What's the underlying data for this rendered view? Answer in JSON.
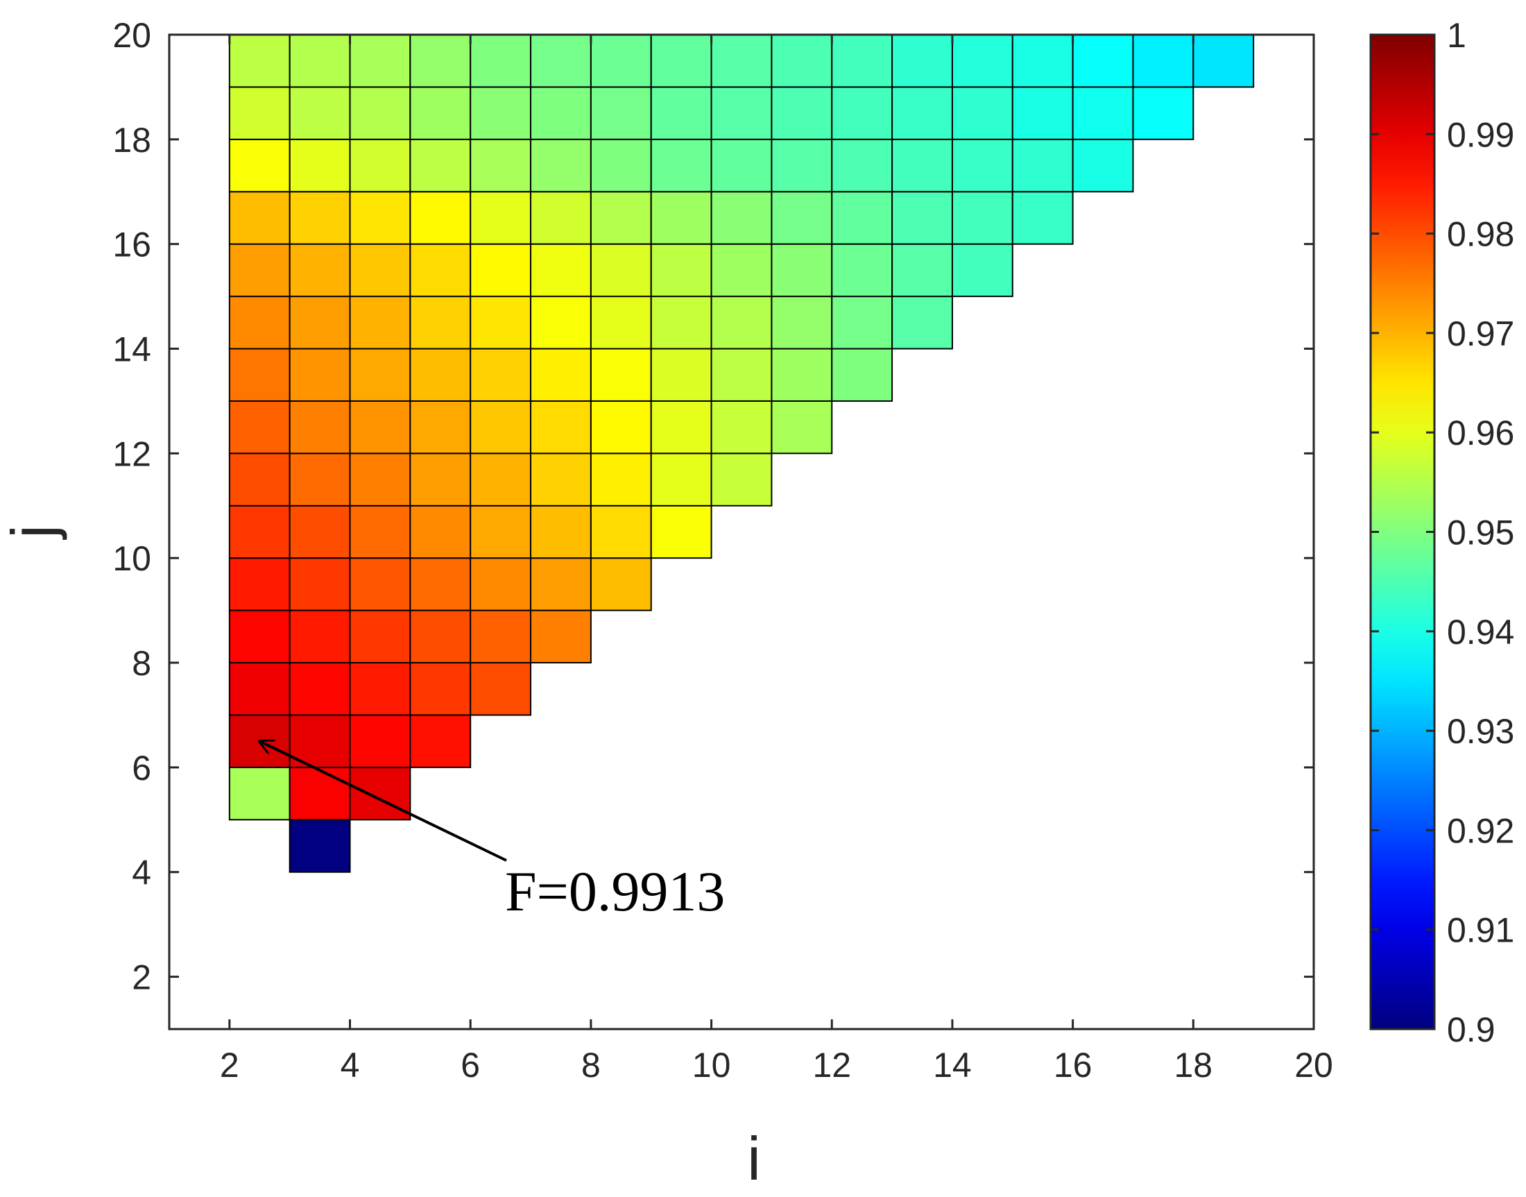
{
  "chart_data": {
    "type": "heatmap",
    "title": "",
    "xlabel": "i",
    "ylabel": "j",
    "xlim": [
      1,
      20
    ],
    "ylim": [
      1,
      20
    ],
    "xticks": [
      "2",
      "4",
      "6",
      "8",
      "10",
      "12",
      "14",
      "16",
      "18",
      "20"
    ],
    "yticks": [
      "2",
      "4",
      "6",
      "8",
      "10",
      "12",
      "14",
      "16",
      "18",
      "20"
    ],
    "colorbar": {
      "min": 0.9,
      "max": 1.0,
      "ticks": [
        "0.9",
        "0.91",
        "0.92",
        "0.93",
        "0.94",
        "0.95",
        "0.96",
        "0.97",
        "0.98",
        "0.99",
        "1"
      ],
      "colormap": "jet"
    },
    "grid": false,
    "cells": [
      {
        "i": 3,
        "j": 4,
        "v": 0.9
      },
      {
        "i": 2,
        "j": 5,
        "v": 0.954
      },
      {
        "i": 3,
        "j": 5,
        "v": 0.988
      },
      {
        "i": 4,
        "j": 5,
        "v": 0.99
      },
      {
        "i": 2,
        "j": 6,
        "v": 0.9913
      },
      {
        "i": 3,
        "j": 6,
        "v": 0.99
      },
      {
        "i": 4,
        "j": 6,
        "v": 0.987
      },
      {
        "i": 5,
        "j": 6,
        "v": 0.986
      },
      {
        "i": 2,
        "j": 7,
        "v": 0.989
      },
      {
        "i": 3,
        "j": 7,
        "v": 0.987
      },
      {
        "i": 4,
        "j": 7,
        "v": 0.985
      },
      {
        "i": 5,
        "j": 7,
        "v": 0.982
      },
      {
        "i": 6,
        "j": 7,
        "v": 0.98
      },
      {
        "i": 2,
        "j": 8,
        "v": 0.987
      },
      {
        "i": 3,
        "j": 8,
        "v": 0.985
      },
      {
        "i": 4,
        "j": 8,
        "v": 0.982
      },
      {
        "i": 5,
        "j": 8,
        "v": 0.98
      },
      {
        "i": 6,
        "j": 8,
        "v": 0.978
      },
      {
        "i": 7,
        "j": 8,
        "v": 0.975
      },
      {
        "i": 2,
        "j": 9,
        "v": 0.985
      },
      {
        "i": 3,
        "j": 9,
        "v": 0.982
      },
      {
        "i": 4,
        "j": 9,
        "v": 0.979
      },
      {
        "i": 5,
        "j": 9,
        "v": 0.977
      },
      {
        "i": 6,
        "j": 9,
        "v": 0.974
      },
      {
        "i": 7,
        "j": 9,
        "v": 0.972
      },
      {
        "i": 8,
        "j": 9,
        "v": 0.969
      },
      {
        "i": 2,
        "j": 10,
        "v": 0.982
      },
      {
        "i": 3,
        "j": 10,
        "v": 0.98
      },
      {
        "i": 4,
        "j": 10,
        "v": 0.977
      },
      {
        "i": 5,
        "j": 10,
        "v": 0.974
      },
      {
        "i": 6,
        "j": 10,
        "v": 0.971
      },
      {
        "i": 7,
        "j": 10,
        "v": 0.969
      },
      {
        "i": 8,
        "j": 10,
        "v": 0.966
      },
      {
        "i": 9,
        "j": 10,
        "v": 0.962
      },
      {
        "i": 2,
        "j": 11,
        "v": 0.98
      },
      {
        "i": 3,
        "j": 11,
        "v": 0.977
      },
      {
        "i": 4,
        "j": 11,
        "v": 0.975
      },
      {
        "i": 5,
        "j": 11,
        "v": 0.972
      },
      {
        "i": 6,
        "j": 11,
        "v": 0.97
      },
      {
        "i": 7,
        "j": 11,
        "v": 0.967
      },
      {
        "i": 8,
        "j": 11,
        "v": 0.964
      },
      {
        "i": 9,
        "j": 11,
        "v": 0.96
      },
      {
        "i": 10,
        "j": 11,
        "v": 0.957
      },
      {
        "i": 2,
        "j": 12,
        "v": 0.978
      },
      {
        "i": 3,
        "j": 12,
        "v": 0.975
      },
      {
        "i": 4,
        "j": 12,
        "v": 0.973
      },
      {
        "i": 5,
        "j": 12,
        "v": 0.971
      },
      {
        "i": 6,
        "j": 12,
        "v": 0.968
      },
      {
        "i": 7,
        "j": 12,
        "v": 0.966
      },
      {
        "i": 8,
        "j": 12,
        "v": 0.963
      },
      {
        "i": 9,
        "j": 12,
        "v": 0.96
      },
      {
        "i": 10,
        "j": 12,
        "v": 0.957
      },
      {
        "i": 11,
        "j": 12,
        "v": 0.954
      },
      {
        "i": 2,
        "j": 13,
        "v": 0.976
      },
      {
        "i": 3,
        "j": 13,
        "v": 0.973
      },
      {
        "i": 4,
        "j": 13,
        "v": 0.971
      },
      {
        "i": 5,
        "j": 13,
        "v": 0.969
      },
      {
        "i": 6,
        "j": 13,
        "v": 0.967
      },
      {
        "i": 7,
        "j": 13,
        "v": 0.964
      },
      {
        "i": 8,
        "j": 13,
        "v": 0.962
      },
      {
        "i": 9,
        "j": 13,
        "v": 0.959
      },
      {
        "i": 10,
        "j": 13,
        "v": 0.956
      },
      {
        "i": 11,
        "j": 13,
        "v": 0.953
      },
      {
        "i": 12,
        "j": 13,
        "v": 0.95
      },
      {
        "i": 2,
        "j": 14,
        "v": 0.974
      },
      {
        "i": 3,
        "j": 14,
        "v": 0.972
      },
      {
        "i": 4,
        "j": 14,
        "v": 0.97
      },
      {
        "i": 5,
        "j": 14,
        "v": 0.967
      },
      {
        "i": 6,
        "j": 14,
        "v": 0.965
      },
      {
        "i": 7,
        "j": 14,
        "v": 0.962
      },
      {
        "i": 8,
        "j": 14,
        "v": 0.96
      },
      {
        "i": 9,
        "j": 14,
        "v": 0.957
      },
      {
        "i": 10,
        "j": 14,
        "v": 0.955
      },
      {
        "i": 11,
        "j": 14,
        "v": 0.952
      },
      {
        "i": 12,
        "j": 14,
        "v": 0.949
      },
      {
        "i": 13,
        "j": 14,
        "v": 0.946
      },
      {
        "i": 2,
        "j": 15,
        "v": 0.972
      },
      {
        "i": 3,
        "j": 15,
        "v": 0.97
      },
      {
        "i": 4,
        "j": 15,
        "v": 0.968
      },
      {
        "i": 5,
        "j": 15,
        "v": 0.966
      },
      {
        "i": 6,
        "j": 15,
        "v": 0.963
      },
      {
        "i": 7,
        "j": 15,
        "v": 0.961
      },
      {
        "i": 8,
        "j": 15,
        "v": 0.959
      },
      {
        "i": 9,
        "j": 15,
        "v": 0.956
      },
      {
        "i": 10,
        "j": 15,
        "v": 0.953
      },
      {
        "i": 11,
        "j": 15,
        "v": 0.951
      },
      {
        "i": 12,
        "j": 15,
        "v": 0.948
      },
      {
        "i": 13,
        "j": 15,
        "v": 0.946
      },
      {
        "i": 14,
        "j": 15,
        "v": 0.944
      },
      {
        "i": 2,
        "j": 16,
        "v": 0.969
      },
      {
        "i": 3,
        "j": 16,
        "v": 0.967
      },
      {
        "i": 4,
        "j": 16,
        "v": 0.965
      },
      {
        "i": 5,
        "j": 16,
        "v": 0.963
      },
      {
        "i": 6,
        "j": 16,
        "v": 0.96
      },
      {
        "i": 7,
        "j": 16,
        "v": 0.958
      },
      {
        "i": 8,
        "j": 16,
        "v": 0.955
      },
      {
        "i": 9,
        "j": 16,
        "v": 0.953
      },
      {
        "i": 10,
        "j": 16,
        "v": 0.951
      },
      {
        "i": 11,
        "j": 16,
        "v": 0.949
      },
      {
        "i": 12,
        "j": 16,
        "v": 0.947
      },
      {
        "i": 13,
        "j": 16,
        "v": 0.945
      },
      {
        "i": 14,
        "j": 16,
        "v": 0.944
      },
      {
        "i": 15,
        "j": 16,
        "v": 0.943
      },
      {
        "i": 2,
        "j": 17,
        "v": 0.962
      },
      {
        "i": 3,
        "j": 17,
        "v": 0.96
      },
      {
        "i": 4,
        "j": 17,
        "v": 0.958
      },
      {
        "i": 5,
        "j": 17,
        "v": 0.956
      },
      {
        "i": 6,
        "j": 17,
        "v": 0.954
      },
      {
        "i": 7,
        "j": 17,
        "v": 0.952
      },
      {
        "i": 8,
        "j": 17,
        "v": 0.95
      },
      {
        "i": 9,
        "j": 17,
        "v": 0.948
      },
      {
        "i": 10,
        "j": 17,
        "v": 0.947
      },
      {
        "i": 11,
        "j": 17,
        "v": 0.946
      },
      {
        "i": 12,
        "j": 17,
        "v": 0.945
      },
      {
        "i": 13,
        "j": 17,
        "v": 0.944
      },
      {
        "i": 14,
        "j": 17,
        "v": 0.943
      },
      {
        "i": 15,
        "j": 17,
        "v": 0.942
      },
      {
        "i": 16,
        "j": 17,
        "v": 0.94
      },
      {
        "i": 2,
        "j": 18,
        "v": 0.958
      },
      {
        "i": 3,
        "j": 18,
        "v": 0.956
      },
      {
        "i": 4,
        "j": 18,
        "v": 0.955
      },
      {
        "i": 5,
        "j": 18,
        "v": 0.953
      },
      {
        "i": 6,
        "j": 18,
        "v": 0.951
      },
      {
        "i": 7,
        "j": 18,
        "v": 0.95
      },
      {
        "i": 8,
        "j": 18,
        "v": 0.949
      },
      {
        "i": 9,
        "j": 18,
        "v": 0.947
      },
      {
        "i": 10,
        "j": 18,
        "v": 0.946
      },
      {
        "i": 11,
        "j": 18,
        "v": 0.945
      },
      {
        "i": 12,
        "j": 18,
        "v": 0.944
      },
      {
        "i": 13,
        "j": 18,
        "v": 0.943
      },
      {
        "i": 14,
        "j": 18,
        "v": 0.942
      },
      {
        "i": 15,
        "j": 18,
        "v": 0.94
      },
      {
        "i": 16,
        "j": 18,
        "v": 0.939
      },
      {
        "i": 17,
        "j": 18,
        "v": 0.938
      },
      {
        "i": 2,
        "j": 19,
        "v": 0.956
      },
      {
        "i": 3,
        "j": 19,
        "v": 0.955
      },
      {
        "i": 4,
        "j": 19,
        "v": 0.954
      },
      {
        "i": 5,
        "j": 19,
        "v": 0.952
      },
      {
        "i": 6,
        "j": 19,
        "v": 0.95
      },
      {
        "i": 7,
        "j": 19,
        "v": 0.949
      },
      {
        "i": 8,
        "j": 19,
        "v": 0.948
      },
      {
        "i": 9,
        "j": 19,
        "v": 0.947
      },
      {
        "i": 10,
        "j": 19,
        "v": 0.946
      },
      {
        "i": 11,
        "j": 19,
        "v": 0.945
      },
      {
        "i": 12,
        "j": 19,
        "v": 0.944
      },
      {
        "i": 13,
        "j": 19,
        "v": 0.942
      },
      {
        "i": 14,
        "j": 19,
        "v": 0.941
      },
      {
        "i": 15,
        "j": 19,
        "v": 0.94
      },
      {
        "i": 16,
        "j": 19,
        "v": 0.938
      },
      {
        "i": 17,
        "j": 19,
        "v": 0.936
      },
      {
        "i": 18,
        "j": 19,
        "v": 0.935
      }
    ],
    "annotation": {
      "text": "F=0.9913",
      "points_to": {
        "i": 2.5,
        "j": 6.5
      }
    }
  }
}
